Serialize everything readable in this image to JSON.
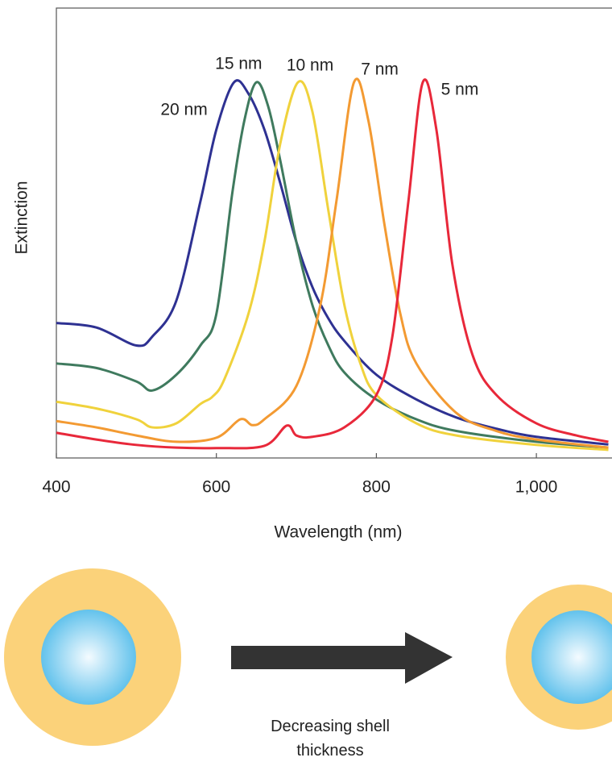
{
  "chart_data": {
    "type": "line",
    "x_label": "Wavelength (nm)",
    "y_label": "Extinction",
    "xlim": [
      400,
      1090
    ],
    "ylim": [
      0,
      1
    ],
    "xticks": [
      400,
      600,
      800,
      {
        "value": 1000,
        "label": "1,000"
      }
    ],
    "series": [
      {
        "name": "20 nm",
        "color": "#2e3192",
        "x": [
          400,
          450,
          500,
          520,
          550,
          580,
          600,
          622,
          640,
          660,
          680,
          700,
          720,
          740,
          760,
          800,
          850,
          900,
          950,
          1000,
          1090
        ],
        "values": [
          0.3,
          0.29,
          0.25,
          0.27,
          0.35,
          0.57,
          0.73,
          0.835,
          0.81,
          0.73,
          0.61,
          0.48,
          0.38,
          0.31,
          0.26,
          0.185,
          0.13,
          0.09,
          0.065,
          0.047,
          0.03
        ]
      },
      {
        "name": "15 nm",
        "color": "#3f7a5e",
        "x": [
          400,
          450,
          500,
          520,
          550,
          580,
          600,
          620,
          635,
          650,
          665,
          680,
          700,
          720,
          740,
          760,
          800,
          850,
          900,
          1000,
          1090
        ],
        "values": [
          0.21,
          0.2,
          0.17,
          0.15,
          0.185,
          0.25,
          0.32,
          0.59,
          0.75,
          0.835,
          0.78,
          0.66,
          0.48,
          0.34,
          0.25,
          0.19,
          0.13,
          0.086,
          0.06,
          0.036,
          0.023
        ]
      },
      {
        "name": "10 nm",
        "color": "#f0d23c",
        "x": [
          400,
          450,
          500,
          520,
          550,
          580,
          595,
          610,
          640,
          660,
          680,
          702,
          720,
          740,
          760,
          780,
          800,
          850,
          900,
          1000,
          1090
        ],
        "values": [
          0.125,
          0.11,
          0.086,
          0.068,
          0.077,
          0.12,
          0.136,
          0.175,
          0.32,
          0.48,
          0.7,
          0.835,
          0.77,
          0.55,
          0.34,
          0.21,
          0.14,
          0.077,
          0.05,
          0.029,
          0.018
        ]
      },
      {
        "name": "7 nm",
        "color": "#f39a32",
        "x": [
          400,
          450,
          500,
          550,
          600,
          630,
          645,
          660,
          700,
          730,
          750,
          772,
          790,
          810,
          830,
          850,
          900,
          950,
          1000,
          1090
        ],
        "values": [
          0.082,
          0.068,
          0.05,
          0.036,
          0.045,
          0.086,
          0.073,
          0.086,
          0.16,
          0.34,
          0.57,
          0.835,
          0.75,
          0.52,
          0.32,
          0.21,
          0.1,
          0.06,
          0.041,
          0.023
        ]
      },
      {
        "name": "5 nm",
        "color": "#e8283a",
        "x": [
          400,
          450,
          500,
          550,
          600,
          660,
          688,
          700,
          720,
          760,
          800,
          820,
          840,
          858,
          875,
          895,
          920,
          950,
          1000,
          1050,
          1090
        ],
        "values": [
          0.056,
          0.041,
          0.029,
          0.023,
          0.022,
          0.027,
          0.072,
          0.05,
          0.047,
          0.068,
          0.14,
          0.27,
          0.57,
          0.835,
          0.73,
          0.43,
          0.23,
          0.14,
          0.077,
          0.05,
          0.036
        ]
      }
    ],
    "caption": "Decreasing shell thickness"
  }
}
